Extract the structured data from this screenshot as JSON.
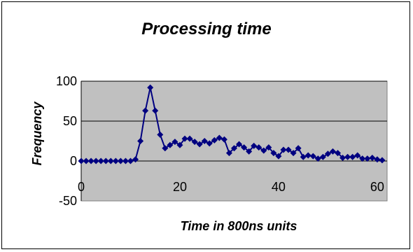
{
  "chart_data": {
    "type": "line",
    "title": "Processing time",
    "xlabel": "Time in 800ns units",
    "ylabel": "Frequency",
    "xlim": [
      0,
      62
    ],
    "ylim": [
      -50,
      100
    ],
    "x_ticks": [
      0,
      20,
      40,
      60
    ],
    "x_tick_labels": [
      "0",
      "20",
      "40",
      "60"
    ],
    "y_ticks": [
      -50,
      0,
      50,
      100
    ],
    "y_tick_labels": [
      "-50",
      "0",
      "50",
      "100"
    ],
    "grid": "horizontal",
    "legend": "none",
    "plot_background": "#c0c0c0",
    "series": [
      {
        "color": "#000080",
        "marker": "diamond",
        "x": [
          0,
          1,
          2,
          3,
          4,
          5,
          6,
          7,
          8,
          9,
          10,
          11,
          12,
          13,
          14,
          15,
          16,
          17,
          18,
          19,
          20,
          21,
          22,
          23,
          24,
          25,
          26,
          27,
          28,
          29,
          30,
          31,
          32,
          33,
          34,
          35,
          36,
          37,
          38,
          39,
          40,
          41,
          42,
          43,
          44,
          45,
          46,
          47,
          48,
          49,
          50,
          51,
          52,
          53,
          54,
          55,
          56,
          57,
          58,
          59,
          60,
          61
        ],
        "values": [
          0,
          0,
          0,
          0,
          0,
          0,
          0,
          0,
          0,
          0,
          0,
          2,
          25,
          63,
          92,
          63,
          33,
          16,
          20,
          24,
          20,
          28,
          28,
          24,
          21,
          25,
          22,
          26,
          29,
          27,
          10,
          16,
          21,
          17,
          12,
          19,
          17,
          13,
          17,
          10,
          6,
          14,
          14,
          10,
          16,
          5,
          7,
          6,
          3,
          5,
          9,
          12,
          10,
          4,
          5,
          5,
          7,
          3,
          3,
          4,
          2,
          1
        ]
      }
    ]
  }
}
